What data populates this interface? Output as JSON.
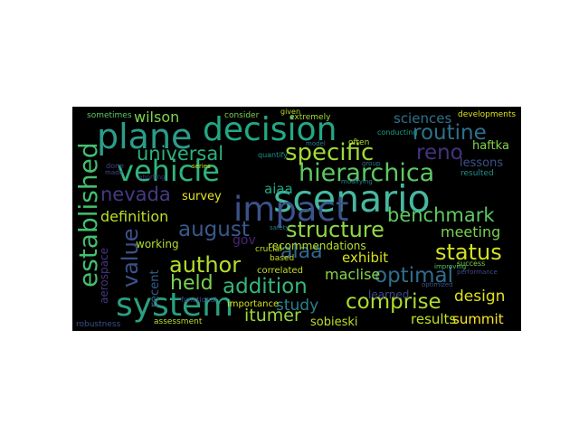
{
  "cloud": {
    "background": "#000000",
    "words": [
      {
        "text": "scenario",
        "color": "#46b8a0"
      },
      {
        "text": "impact",
        "color": "#3b528b"
      },
      {
        "text": "system",
        "color": "#2aa080"
      },
      {
        "text": "decision",
        "color": "#22a884"
      },
      {
        "text": "plane",
        "color": "#2c9c8a"
      },
      {
        "text": "vehicle",
        "color": "#2fb47c"
      },
      {
        "text": "hierarchica",
        "color": "#5ec962"
      },
      {
        "text": "specific",
        "color": "#a0da39"
      },
      {
        "text": "established",
        "color": "#44bf70"
      },
      {
        "text": "universal",
        "color": "#2db27d"
      },
      {
        "text": "nevada",
        "color": "#443a83"
      },
      {
        "text": "value",
        "color": "#3b528b"
      },
      {
        "text": "august",
        "color": "#38598c"
      },
      {
        "text": "structure",
        "color": "#8fd744"
      },
      {
        "text": "author",
        "color": "#b4de2c"
      },
      {
        "text": "addition",
        "color": "#35b779"
      },
      {
        "text": "optimal",
        "color": "#2e6e8e"
      },
      {
        "text": "status",
        "color": "#d2e21b"
      },
      {
        "text": "comprise",
        "color": "#addc30"
      },
      {
        "text": "benchmark",
        "color": "#5ec962"
      },
      {
        "text": "routine",
        "color": "#2c718e"
      },
      {
        "text": "reno",
        "color": "#46327e"
      },
      {
        "text": "alaa",
        "color": "#31688e"
      },
      {
        "text": "held",
        "color": "#7ad151"
      },
      {
        "text": "itumer",
        "color": "#9bd93c"
      },
      {
        "text": "design",
        "color": "#dde318"
      },
      {
        "text": "summit",
        "color": "#fde725"
      },
      {
        "text": "results",
        "color": "#c2df23"
      },
      {
        "text": "sobieski",
        "color": "#bddf26"
      },
      {
        "text": "study",
        "color": "#26828e"
      },
      {
        "text": "maclise",
        "color": "#86d549"
      },
      {
        "text": "exhibit",
        "color": "#d8e219"
      },
      {
        "text": "meeting",
        "color": "#7ad151"
      },
      {
        "text": "definition",
        "color": "#bddf26"
      },
      {
        "text": "recommendations",
        "color": "#b5de2b"
      },
      {
        "text": "aiaa",
        "color": "#22a785"
      },
      {
        "text": "survey",
        "color": "#e5e419"
      },
      {
        "text": "wilson",
        "color": "#7fd34e"
      },
      {
        "text": "sciences",
        "color": "#2c728e"
      },
      {
        "text": "lessons",
        "color": "#3b528b"
      },
      {
        "text": "haftka",
        "color": "#84d44b"
      },
      {
        "text": "gov",
        "color": "#482475"
      },
      {
        "text": "working",
        "color": "#b0dd2f"
      },
      {
        "text": "aerospace",
        "color": "#453781"
      },
      {
        "text": "learned",
        "color": "#3e4989"
      },
      {
        "text": "recent",
        "color": "#365c8d"
      },
      {
        "text": "correlated",
        "color": "#c0df25"
      },
      {
        "text": "based",
        "color": "#c8e020"
      },
      {
        "text": "importance",
        "color": "#d5e21a"
      },
      {
        "text": "assessment",
        "color": "#b8de29"
      },
      {
        "text": "robustness",
        "color": "#3b528b"
      },
      {
        "text": "crucial",
        "color": "#c0df25"
      },
      {
        "text": "developments",
        "color": "#dae319"
      },
      {
        "text": "resulted",
        "color": "#21918c"
      },
      {
        "text": "consider",
        "color": "#7ad151"
      },
      {
        "text": "sometimes",
        "color": "#5ec962"
      },
      {
        "text": "extremely",
        "color": "#a2da37"
      },
      {
        "text": "conducting",
        "color": "#1f9a8a"
      },
      {
        "text": "often",
        "color": "#b5de2b"
      },
      {
        "text": "done",
        "color": "#414487"
      },
      {
        "text": "quantify",
        "color": "#20928c"
      },
      {
        "text": "modifying",
        "color": "#26828e"
      },
      {
        "text": "aborting",
        "color": "#472d7b"
      },
      {
        "text": "functional",
        "color": "#3e4a89"
      },
      {
        "text": "success",
        "color": "#7ad151"
      },
      {
        "text": "improving",
        "color": "#52c569"
      },
      {
        "text": "optimized",
        "color": "#3b528b"
      },
      {
        "text": "performance",
        "color": "#3e4a89"
      },
      {
        "text": "given",
        "color": "#b8de29"
      },
      {
        "text": "model",
        "color": "#2a788e"
      },
      {
        "text": "series",
        "color": "#cde11d"
      },
      {
        "text": "made",
        "color": "#3e4989"
      },
      {
        "text": "group",
        "color": "#2c728e"
      },
      {
        "text": "safety",
        "color": "#2a788e"
      }
    ]
  }
}
